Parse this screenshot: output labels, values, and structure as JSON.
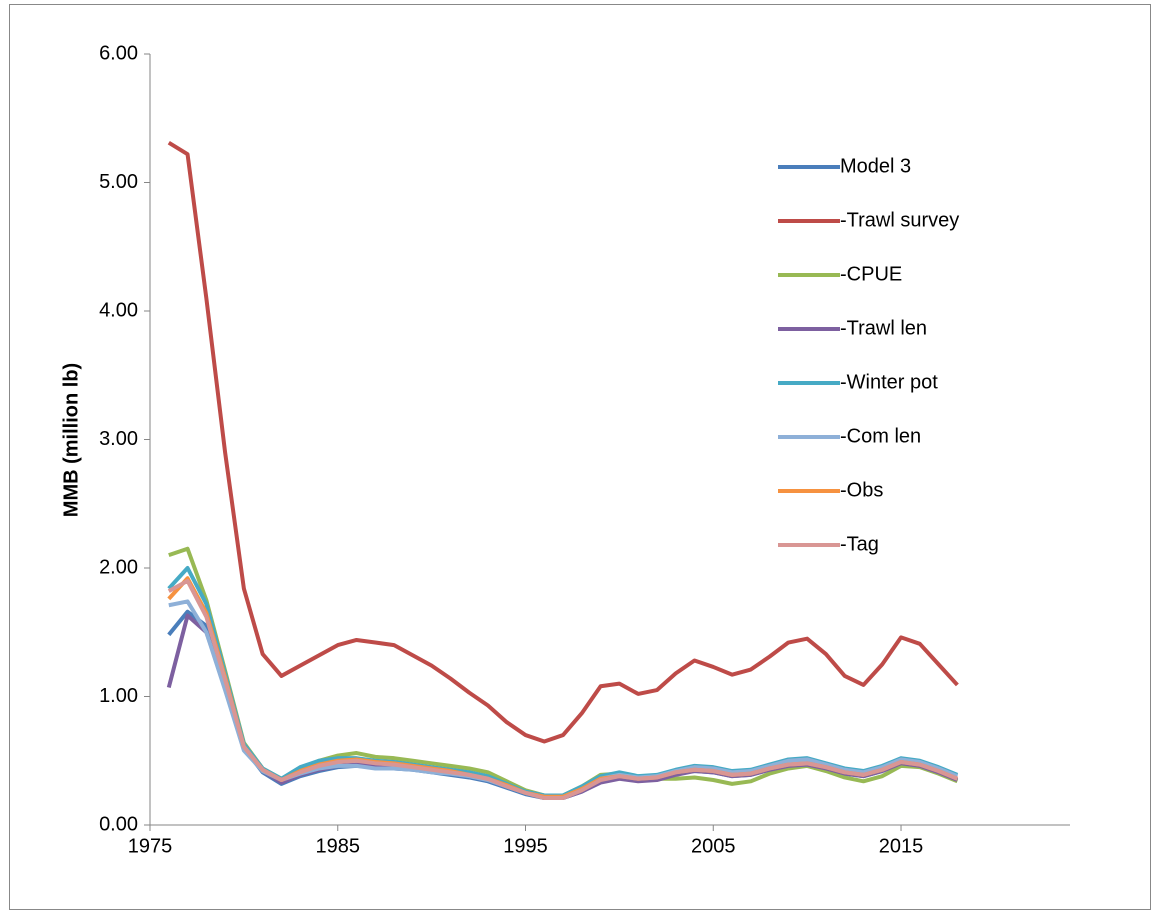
{
  "chart_data": {
    "type": "line",
    "y_label": "MMB (million lb)",
    "x": [
      1976,
      1977,
      1978,
      1979,
      1980,
      1981,
      1982,
      1983,
      1984,
      1985,
      1986,
      1987,
      1988,
      1989,
      1990,
      1991,
      1992,
      1993,
      1994,
      1995,
      1996,
      1997,
      1998,
      1999,
      2000,
      2001,
      2002,
      2003,
      2004,
      2005,
      2006,
      2007,
      2008,
      2009,
      2010,
      2011,
      2012,
      2013,
      2014,
      2015,
      2016,
      2017,
      2018
    ],
    "xlim": [
      1975,
      2024
    ],
    "xticks": [
      1975,
      1985,
      1995,
      2005,
      2015
    ],
    "ylim": [
      0,
      6
    ],
    "yticks": [
      {
        "value": 0,
        "label": "0.00"
      },
      {
        "value": 1,
        "label": "1.00"
      },
      {
        "value": 2,
        "label": "2.00"
      },
      {
        "value": 3,
        "label": "3.00"
      },
      {
        "value": 4,
        "label": "4.00"
      },
      {
        "value": 5,
        "label": "5.00"
      },
      {
        "value": 6,
        "label": "6.00"
      }
    ],
    "series": [
      {
        "name": "Model 3",
        "color": "#4a7ebb",
        "values": [
          1.48,
          1.66,
          1.55,
          1.1,
          0.6,
          0.41,
          0.32,
          0.38,
          0.42,
          0.45,
          0.46,
          0.45,
          0.44,
          0.43,
          0.41,
          0.39,
          0.37,
          0.34,
          0.29,
          0.24,
          0.21,
          0.21,
          0.26,
          0.34,
          0.37,
          0.35,
          0.36,
          0.4,
          0.42,
          0.41,
          0.38,
          0.39,
          0.43,
          0.46,
          0.47,
          0.44,
          0.4,
          0.38,
          0.42,
          0.48,
          0.46,
          0.41,
          0.35
        ]
      },
      {
        "name": "-Trawl survey",
        "color": "#be4b48",
        "values": [
          5.31,
          5.22,
          4.1,
          2.9,
          1.84,
          1.33,
          1.16,
          1.24,
          1.32,
          1.4,
          1.44,
          1.42,
          1.4,
          1.32,
          1.24,
          1.14,
          1.03,
          0.93,
          0.8,
          0.7,
          0.65,
          0.7,
          0.87,
          1.08,
          1.1,
          1.02,
          1.05,
          1.18,
          1.28,
          1.23,
          1.17,
          1.21,
          1.31,
          1.42,
          1.45,
          1.33,
          1.16,
          1.09,
          1.25,
          1.46,
          1.41,
          1.25,
          1.09
        ]
      },
      {
        "name": "-CPUE",
        "color": "#98b954",
        "values": [
          2.1,
          2.15,
          1.75,
          1.2,
          0.64,
          0.44,
          0.36,
          0.44,
          0.5,
          0.54,
          0.56,
          0.53,
          0.52,
          0.5,
          0.48,
          0.46,
          0.44,
          0.41,
          0.34,
          0.27,
          0.23,
          0.23,
          0.3,
          0.39,
          0.4,
          0.36,
          0.36,
          0.36,
          0.37,
          0.35,
          0.32,
          0.34,
          0.4,
          0.44,
          0.46,
          0.42,
          0.37,
          0.34,
          0.38,
          0.46,
          0.45,
          0.4,
          0.34
        ]
      },
      {
        "name": "-Trawl len",
        "color": "#7d60a0",
        "values": [
          1.07,
          1.63,
          1.5,
          1.08,
          0.6,
          0.42,
          0.33,
          0.39,
          0.43,
          0.46,
          0.47,
          0.46,
          0.45,
          0.44,
          0.42,
          0.4,
          0.38,
          0.35,
          0.3,
          0.25,
          0.21,
          0.21,
          0.26,
          0.33,
          0.36,
          0.34,
          0.35,
          0.39,
          0.42,
          0.41,
          0.38,
          0.39,
          0.43,
          0.46,
          0.47,
          0.44,
          0.4,
          0.38,
          0.42,
          0.48,
          0.46,
          0.41,
          0.35
        ]
      },
      {
        "name": "-Winter pot",
        "color": "#46aac5",
        "values": [
          1.84,
          2.0,
          1.72,
          1.18,
          0.63,
          0.44,
          0.36,
          0.45,
          0.5,
          0.52,
          0.52,
          0.5,
          0.49,
          0.47,
          0.45,
          0.43,
          0.41,
          0.38,
          0.32,
          0.26,
          0.23,
          0.23,
          0.3,
          0.38,
          0.41,
          0.38,
          0.39,
          0.43,
          0.46,
          0.45,
          0.42,
          0.43,
          0.47,
          0.51,
          0.52,
          0.48,
          0.44,
          0.42,
          0.46,
          0.52,
          0.5,
          0.45,
          0.39
        ]
      },
      {
        "name": "-Com len",
        "color": "#8eb0d8",
        "values": [
          1.71,
          1.74,
          1.5,
          1.05,
          0.58,
          0.42,
          0.35,
          0.4,
          0.44,
          0.46,
          0.46,
          0.44,
          0.44,
          0.43,
          0.41,
          0.4,
          0.38,
          0.35,
          0.3,
          0.25,
          0.22,
          0.22,
          0.28,
          0.36,
          0.39,
          0.37,
          0.38,
          0.42,
          0.45,
          0.44,
          0.41,
          0.42,
          0.46,
          0.5,
          0.51,
          0.47,
          0.43,
          0.41,
          0.45,
          0.51,
          0.49,
          0.44,
          0.38
        ]
      },
      {
        "name": "-Obs",
        "color": "#f69240",
        "values": [
          1.76,
          1.92,
          1.65,
          1.15,
          0.61,
          0.43,
          0.35,
          0.42,
          0.47,
          0.5,
          0.51,
          0.49,
          0.48,
          0.46,
          0.44,
          0.42,
          0.39,
          0.36,
          0.31,
          0.25,
          0.22,
          0.22,
          0.28,
          0.36,
          0.38,
          0.36,
          0.37,
          0.41,
          0.43,
          0.42,
          0.39,
          0.4,
          0.44,
          0.47,
          0.48,
          0.45,
          0.41,
          0.39,
          0.43,
          0.49,
          0.47,
          0.42,
          0.36
        ]
      },
      {
        "name": "-Tag",
        "color": "#d99694",
        "values": [
          1.82,
          1.9,
          1.62,
          1.13,
          0.61,
          0.43,
          0.35,
          0.41,
          0.46,
          0.49,
          0.5,
          0.48,
          0.47,
          0.45,
          0.43,
          0.41,
          0.39,
          0.36,
          0.3,
          0.25,
          0.21,
          0.21,
          0.27,
          0.35,
          0.38,
          0.36,
          0.37,
          0.41,
          0.43,
          0.42,
          0.39,
          0.4,
          0.44,
          0.47,
          0.48,
          0.45,
          0.41,
          0.39,
          0.43,
          0.49,
          0.47,
          0.42,
          0.36
        ]
      }
    ]
  }
}
